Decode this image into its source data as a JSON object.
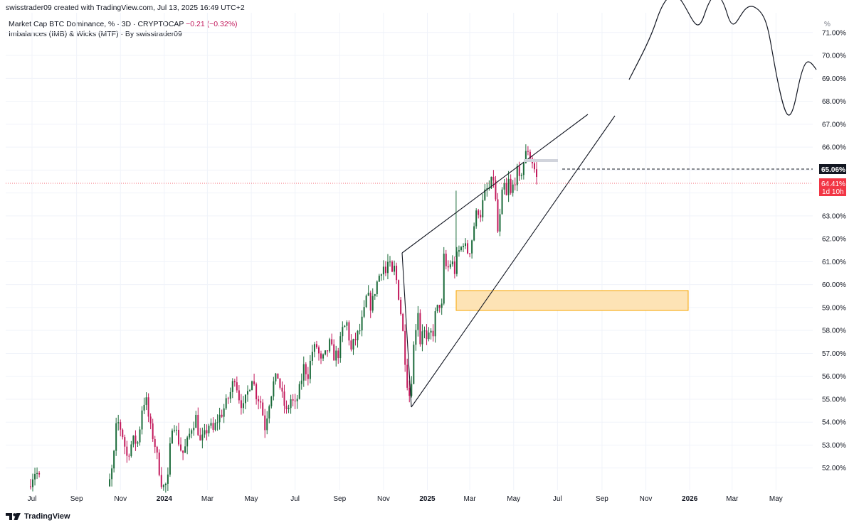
{
  "header": {
    "author": "swisstrader09",
    "created_with": "created with TradingView.com,",
    "timestamp": "Jul 13, 2025 16:49 UTC+2"
  },
  "legend": {
    "symbol": "Market Cap BTC Dominance, % · 3D · CRYPTOCAP",
    "change": "−0.21 (−0.32%)",
    "indicator": "Imbalances (IMB) & Wicks (MTF) · By swisstrader09"
  },
  "axis": {
    "unit": "%",
    "last_price_label": "65.06%",
    "current_price_label": "64.41%",
    "countdown_label": "1d 10h"
  },
  "footer": {
    "brand": "TradingView"
  },
  "colors": {
    "up": "#1b6b3a",
    "down": "#c2185b",
    "zone_fill": "#fde3b5",
    "zone_stroke": "#f7a600",
    "price_tag": "#f23645",
    "last_tag": "#131722"
  },
  "chart_data": {
    "type": "candlestick",
    "y_axis": {
      "min": 51,
      "max": 71.5,
      "ticks": [
        52,
        53,
        54,
        55,
        56,
        57,
        58,
        59,
        60,
        61,
        62,
        63,
        64,
        65,
        66,
        67,
        68,
        69,
        70,
        71
      ],
      "tick_labels": [
        "52.00%",
        "53.00%",
        "54.00%",
        "55.00%",
        "56.00%",
        "57.00%",
        "58.00%",
        "59.00%",
        "60.00%",
        "61.00%",
        "62.00%",
        "63.00%",
        "64.00%",
        "65.00%",
        "66.00%",
        "67.00%",
        "68.00%",
        "69.00%",
        "70.00%",
        "71.00%"
      ]
    },
    "x_axis": {
      "ticks": [
        {
          "label": "Jul",
          "t": 0
        },
        {
          "label": "Sep",
          "t": 62
        },
        {
          "label": "Nov",
          "t": 123
        },
        {
          "label": "2024",
          "t": 184,
          "bold": true
        },
        {
          "label": "Mar",
          "t": 244
        },
        {
          "label": "May",
          "t": 305
        },
        {
          "label": "Jul",
          "t": 366
        },
        {
          "label": "Sep",
          "t": 428
        },
        {
          "label": "Nov",
          "t": 489
        },
        {
          "label": "2025",
          "t": 550,
          "bold": true
        },
        {
          "label": "Mar",
          "t": 609
        },
        {
          "label": "May",
          "t": 670
        },
        {
          "label": "Jul",
          "t": 731
        },
        {
          "label": "Sep",
          "t": 793
        },
        {
          "label": "Nov",
          "t": 854
        },
        {
          "label": "2026",
          "t": 915,
          "bold": true
        },
        {
          "label": "Mar",
          "t": 974
        },
        {
          "label": "May",
          "t": 1035
        }
      ]
    },
    "close_anchors": [
      [
        -5,
        51.2
      ],
      [
        0,
        51.6
      ],
      [
        5,
        51.9
      ],
      [
        12,
        51.4
      ],
      [
        105,
        51.2
      ],
      [
        108,
        51.4
      ],
      [
        113,
        52.2
      ],
      [
        118,
        54.1
      ],
      [
        125,
        53.6
      ],
      [
        132,
        52.5
      ],
      [
        140,
        53.2
      ],
      [
        148,
        53.1
      ],
      [
        152,
        54.5
      ],
      [
        158,
        55.1
      ],
      [
        164,
        53.8
      ],
      [
        170,
        53.2
      ],
      [
        176,
        52.1
      ],
      [
        180,
        51.4
      ],
      [
        184,
        51.1
      ],
      [
        189,
        51.5
      ],
      [
        193,
        53.3
      ],
      [
        196,
        54.2
      ],
      [
        202,
        53.4
      ],
      [
        209,
        52.6
      ],
      [
        215,
        53.0
      ],
      [
        222,
        53.8
      ],
      [
        228,
        54.2
      ],
      [
        234,
        53.1
      ],
      [
        240,
        53.4
      ],
      [
        246,
        53.9
      ],
      [
        252,
        53.6
      ],
      [
        258,
        54.1
      ],
      [
        264,
        54.4
      ],
      [
        270,
        54.8
      ],
      [
        276,
        55.3
      ],
      [
        282,
        56.0
      ],
      [
        288,
        55.1
      ],
      [
        294,
        54.6
      ],
      [
        300,
        55.3
      ],
      [
        306,
        56.0
      ],
      [
        312,
        55.2
      ],
      [
        318,
        54.9
      ],
      [
        324,
        53.8
      ],
      [
        330,
        54.9
      ],
      [
        336,
        55.7
      ],
      [
        342,
        56.0
      ],
      [
        348,
        55.1
      ],
      [
        354,
        54.4
      ],
      [
        360,
        55.0
      ],
      [
        366,
        54.7
      ],
      [
        372,
        55.4
      ],
      [
        378,
        56.4
      ],
      [
        384,
        56.1
      ],
      [
        390,
        57.1
      ],
      [
        396,
        57.3
      ],
      [
        402,
        56.6
      ],
      [
        408,
        56.9
      ],
      [
        414,
        57.4
      ],
      [
        420,
        56.9
      ],
      [
        426,
        57.0
      ],
      [
        432,
        58.0
      ],
      [
        438,
        58.3
      ],
      [
        444,
        57.1
      ],
      [
        448,
        57.5
      ],
      [
        456,
        58.0
      ],
      [
        462,
        58.8
      ],
      [
        466,
        59.6
      ],
      [
        472,
        59.0
      ],
      [
        478,
        59.9
      ],
      [
        484,
        60.5
      ],
      [
        488,
        60.9
      ],
      [
        493,
        60.4
      ],
      [
        496,
        61.2
      ],
      [
        500,
        60.3
      ],
      [
        504,
        60.7
      ],
      [
        508,
        60.0
      ],
      [
        512,
        59.1
      ],
      [
        516,
        57.9
      ],
      [
        520,
        56.4
      ],
      [
        524,
        55.1
      ],
      [
        527,
        55.4
      ],
      [
        530,
        57.0
      ],
      [
        534,
        58.2
      ],
      [
        537,
        58.9
      ],
      [
        540,
        57.5
      ],
      [
        543,
        58.1
      ],
      [
        546,
        57.9
      ],
      [
        550,
        57.3
      ],
      [
        554,
        58.0
      ],
      [
        557,
        57.6
      ],
      [
        560,
        58.6
      ],
      [
        563,
        58.8
      ],
      [
        566,
        59.2
      ],
      [
        570,
        59.0
      ],
      [
        572,
        60.8
      ],
      [
        574,
        61.5
      ],
      [
        577,
        60.4
      ],
      [
        580,
        60.9
      ],
      [
        584,
        61.0
      ],
      [
        588,
        60.6
      ],
      [
        592,
        61.4
      ],
      [
        596,
        61.5
      ],
      [
        600,
        61.9
      ],
      [
        604,
        61.5
      ],
      [
        608,
        61.4
      ],
      [
        612,
        62.0
      ],
      [
        616,
        62.8
      ],
      [
        620,
        63.3
      ],
      [
        624,
        63.1
      ],
      [
        628,
        63.7
      ],
      [
        632,
        64.2
      ],
      [
        635,
        64.0
      ],
      [
        638,
        64.5
      ],
      [
        641,
        64.3
      ],
      [
        643,
        65.0
      ],
      [
        645,
        63.6
      ],
      [
        648,
        62.3
      ],
      [
        651,
        62.9
      ],
      [
        654,
        63.9
      ],
      [
        657,
        64.3
      ],
      [
        660,
        63.8
      ],
      [
        663,
        64.5
      ],
      [
        666,
        63.9
      ],
      [
        669,
        64.3
      ],
      [
        672,
        64.6
      ],
      [
        675,
        64.9
      ],
      [
        678,
        64.5
      ],
      [
        682,
        65.1
      ],
      [
        686,
        65.6
      ],
      [
        690,
        65.9
      ],
      [
        694,
        65.5
      ],
      [
        697,
        65.3
      ],
      [
        700,
        64.9
      ],
      [
        703,
        64.5
      ]
    ]
  }
}
